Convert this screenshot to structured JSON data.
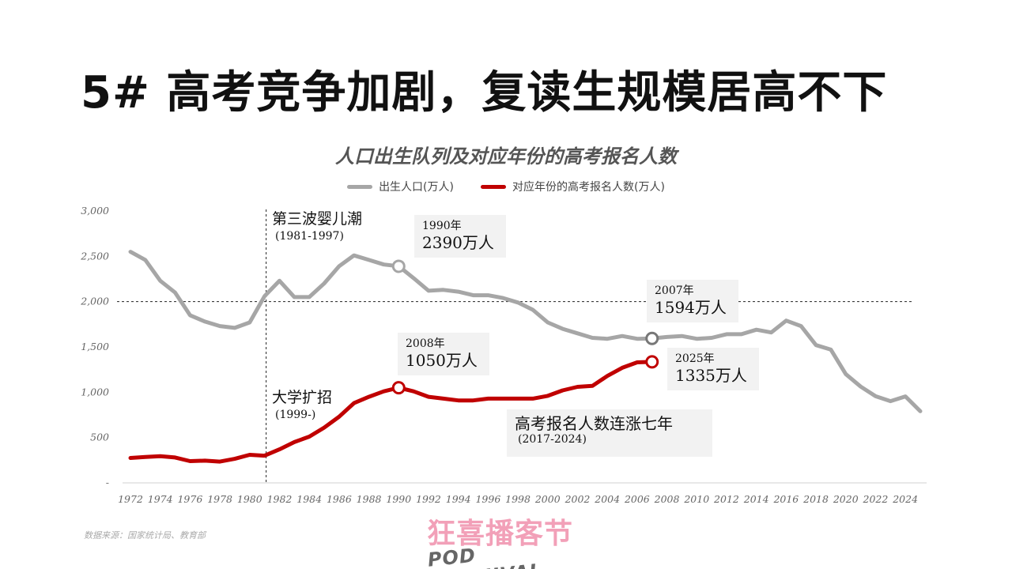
{
  "slide": {
    "title": "5# 高考竞争加剧，复读生规模居高不下",
    "source": "数据来源：国家统计局、教育部",
    "logo": {
      "cn": "狂喜播客节",
      "en": "POD KUANIVAL"
    }
  },
  "chart_data": {
    "type": "line",
    "title": "人口出生队列及对应年份的高考报名人数",
    "ylim": [
      0,
      3000
    ],
    "y_ticks": [
      {
        "value": 0,
        "label": "-"
      },
      {
        "value": 500,
        "label": "500"
      },
      {
        "value": 1000,
        "label": "1,000"
      },
      {
        "value": 1500,
        "label": "1,500"
      },
      {
        "value": 2000,
        "label": "2,000"
      },
      {
        "value": 2500,
        "label": "2,500"
      },
      {
        "value": 3000,
        "label": "3,000"
      }
    ],
    "x_ticks": [
      "1972",
      "1974",
      "1976",
      "1978",
      "1980",
      "1982",
      "1984",
      "1986",
      "1988",
      "1990",
      "1992",
      "1994",
      "1996",
      "1998",
      "2000",
      "2002",
      "2004",
      "2006",
      "2008",
      "2010",
      "2012",
      "2014",
      "2016",
      "2018",
      "2020",
      "2022",
      "2024"
    ],
    "legend_position": "top-center",
    "grid": false,
    "reference_line": {
      "y": 2000,
      "style": "dashed"
    },
    "vertical_line": {
      "x": 1981,
      "style": "dashed"
    },
    "series": [
      {
        "name": "出生人口(万人)",
        "color": "#a6a6a6",
        "x": [
          1972,
          1973,
          1974,
          1975,
          1976,
          1977,
          1978,
          1979,
          1980,
          1981,
          1982,
          1983,
          1984,
          1985,
          1986,
          1987,
          1988,
          1989,
          1990,
          1991,
          1992,
          1993,
          1994,
          1995,
          1996,
          1997,
          1998,
          1999,
          2000,
          2001,
          2002,
          2003,
          2004,
          2005,
          2006,
          2007,
          2008,
          2009,
          2010,
          2011,
          2012,
          2013,
          2014,
          2015,
          2016,
          2017,
          2018,
          2019,
          2020,
          2021,
          2022,
          2023,
          2024,
          2025
        ],
        "values": [
          2550,
          2460,
          2230,
          2100,
          1850,
          1780,
          1730,
          1710,
          1770,
          2060,
          2230,
          2050,
          2050,
          2200,
          2390,
          2510,
          2460,
          2410,
          2390,
          2260,
          2120,
          2130,
          2110,
          2070,
          2070,
          2040,
          1990,
          1910,
          1770,
          1700,
          1650,
          1600,
          1590,
          1620,
          1590,
          1594,
          1610,
          1620,
          1590,
          1600,
          1640,
          1640,
          1690,
          1660,
          1790,
          1730,
          1520,
          1470,
          1200,
          1062,
          956,
          902,
          954,
          790
        ]
      },
      {
        "name": "对应年份的高考报名人数(万人)",
        "color": "#c00000",
        "x": [
          1972,
          1973,
          1974,
          1975,
          1976,
          1977,
          1978,
          1979,
          1980,
          1981,
          1982,
          1983,
          1984,
          1985,
          1986,
          1987,
          1988,
          1989,
          1990,
          1991,
          1992,
          1993,
          1994,
          1995,
          1996,
          1997,
          1998,
          1999,
          2000,
          2001,
          2002,
          2003,
          2004,
          2005,
          2006,
          2007
        ],
        "values": [
          275,
          285,
          295,
          280,
          240,
          245,
          235,
          265,
          310,
          300,
          370,
          450,
          510,
          610,
          730,
          880,
          950,
          1010,
          1050,
          1010,
          950,
          930,
          910,
          910,
          930,
          930,
          930,
          930,
          960,
          1020,
          1060,
          1070,
          1180,
          1270,
          1330,
          1335
        ]
      }
    ],
    "highlights": [
      {
        "series": 0,
        "x": 1990,
        "y": 2390,
        "year_label": "1990年",
        "value_label": "2390万人"
      },
      {
        "series": 0,
        "x": 2007,
        "y": 1594,
        "year_label": "2007年",
        "value_label": "1594万人"
      },
      {
        "series": 1,
        "x": 1990,
        "y": 1050,
        "year_label": "2008年",
        "value_label": "1050万人"
      },
      {
        "series": 1,
        "x": 2007,
        "y": 1335,
        "year_label": "2025年",
        "value_label": "1335万人"
      }
    ],
    "annotations": [
      {
        "key": "baby_boom",
        "head": "第三波婴儿潮",
        "sub": "(1981-1997)"
      },
      {
        "key": "expansion",
        "head": "大学扩招",
        "sub": "(1999-)"
      },
      {
        "key": "rising",
        "head": "高考报名人数连涨七年",
        "sub": "(2017-2024)"
      }
    ]
  }
}
